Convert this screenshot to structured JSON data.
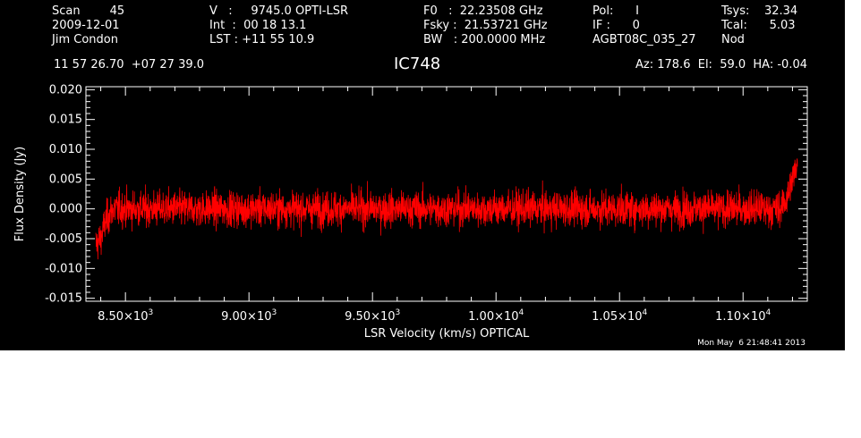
{
  "header": {
    "col1": [
      "Scan        45",
      "2009-12-01",
      "Jim Condon"
    ],
    "col2": [
      "V   :     9745.0 OPTI-LSR",
      "Int  :  00 18 13.1",
      "LST : +11 55 10.9"
    ],
    "col3": [
      "F0   :  22.23508 GHz",
      "Fsky :  21.53721 GHz",
      "BW   : 200.0000 MHz"
    ],
    "col4": [
      "Pol:      I",
      "IF :      0",
      "AGBT08C_035_27"
    ],
    "col5": [
      "Tsys:    32.34",
      "Tcal:      5.03",
      "Nod"
    ],
    "coords": "11 57 26.70  +07 27 39.0",
    "source": "IC748",
    "pointing": "Az: 178.6  El:  59.0  HA: -0.04",
    "timestamp": "Mon May  6 21:48:41 2013"
  },
  "colors": {
    "background": "#000000",
    "axes": "#ffffff",
    "trace": "#ff0000",
    "page": "#ffffff"
  },
  "chart_data": {
    "type": "line",
    "xlabel": "LSR Velocity (km/s) OPTICAL",
    "ylabel": "Flux Density (Jy)",
    "xlim": [
      8340,
      11260
    ],
    "ylim": [
      -0.0155,
      0.0205
    ],
    "x_ticks": [
      {
        "value": 8500,
        "mant": "8.50",
        "exp": "3"
      },
      {
        "value": 9000,
        "mant": "9.00",
        "exp": "3"
      },
      {
        "value": 9500,
        "mant": "9.50",
        "exp": "3"
      },
      {
        "value": 10000,
        "mant": "1.00",
        "exp": "4"
      },
      {
        "value": 10500,
        "mant": "1.05",
        "exp": "4"
      },
      {
        "value": 11000,
        "mant": "1.10",
        "exp": "4"
      }
    ],
    "x_tick_times": "×10",
    "y_ticks": [
      {
        "value": -0.015,
        "label": "-0.015"
      },
      {
        "value": -0.01,
        "label": "-0.010"
      },
      {
        "value": -0.005,
        "label": "-0.005"
      },
      {
        "value": 0.0,
        "label": "0.000"
      },
      {
        "value": 0.005,
        "label": "0.005"
      },
      {
        "value": 0.01,
        "label": "0.010"
      },
      {
        "value": 0.015,
        "label": "0.015"
      },
      {
        "value": 0.02,
        "label": "0.020"
      }
    ],
    "series": [
      {
        "x": [
          8380,
          8400,
          8420,
          8450,
          8500,
          8600,
          8700,
          8800,
          8900,
          9000,
          9100,
          9200,
          9300,
          9400,
          9500,
          9600,
          9700,
          9800,
          9900,
          10000,
          10100,
          10200,
          10300,
          10400,
          10500,
          10600,
          10700,
          10800,
          10900,
          11000,
          11100,
          11150,
          11180,
          11200,
          11220
        ],
        "y": [
          -0.006,
          -0.005,
          -0.002,
          0.0,
          0.0,
          0.0,
          0.0,
          0.0,
          0.0,
          0.0,
          0.0,
          0.0,
          0.0,
          0.0,
          0.0,
          0.0,
          0.0,
          0.0,
          0.0,
          0.0,
          0.0,
          0.0,
          0.0,
          0.0,
          0.0,
          0.0,
          0.0,
          0.0,
          0.0,
          0.0,
          0.0,
          0.0,
          0.002,
          0.005,
          0.008
        ],
        "noise_rms": 0.0027,
        "color": "#ff0000"
      }
    ]
  }
}
